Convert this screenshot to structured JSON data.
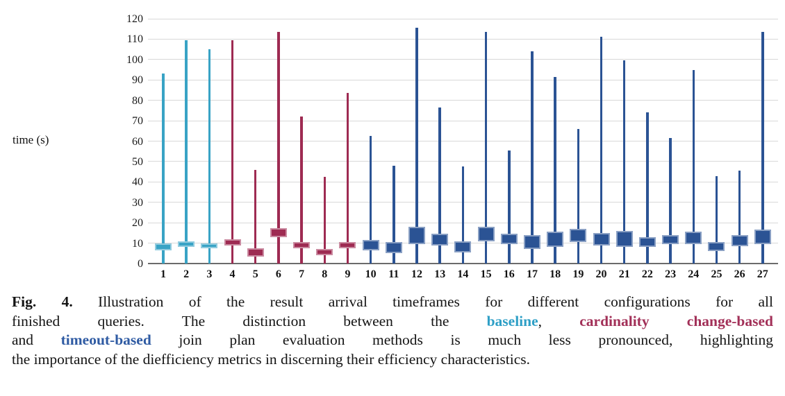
{
  "figure": {
    "ylabel": "time (s)"
  },
  "chart_data": {
    "type": "boxplot",
    "title": "",
    "xlabel": "",
    "ylabel": "time (s)",
    "ylim": [
      0,
      120
    ],
    "ytick_step": 10,
    "grid": "horizontal",
    "categories": [
      "1",
      "2",
      "3",
      "4",
      "5",
      "6",
      "7",
      "8",
      "9",
      "10",
      "11",
      "12",
      "13",
      "14",
      "15",
      "16",
      "17",
      "18",
      "19",
      "20",
      "21",
      "22",
      "23",
      "24",
      "25",
      "26",
      "27"
    ],
    "groups": [
      {
        "name": "baseline",
        "color": "#39A3C5",
        "categories": "1-3"
      },
      {
        "name": "cardinality",
        "color": "#9E2B52",
        "categories": "4-9"
      },
      {
        "name": "timeout",
        "color": "#2B5394",
        "categories": "10-27"
      }
    ],
    "series": [
      {
        "category": "1",
        "group": "baseline",
        "whisker_low": 0,
        "whisker_high": 93,
        "box_low": 6.5,
        "box_high": 10
      },
      {
        "category": "2",
        "group": "baseline",
        "whisker_low": 0,
        "whisker_high": 109.5,
        "box_low": 8,
        "box_high": 11
      },
      {
        "category": "3",
        "group": "baseline",
        "whisker_low": 0,
        "whisker_high": 105,
        "box_low": 7.5,
        "box_high": 10
      },
      {
        "category": "4",
        "group": "cardinality",
        "whisker_low": 0,
        "whisker_high": 109.5,
        "box_low": 9,
        "box_high": 12
      },
      {
        "category": "5",
        "group": "cardinality",
        "whisker_low": 0,
        "whisker_high": 46,
        "box_low": 3.5,
        "box_high": 7.5
      },
      {
        "category": "6",
        "group": "cardinality",
        "whisker_low": 0,
        "whisker_high": 113.5,
        "box_low": 13,
        "box_high": 17.5
      },
      {
        "category": "7",
        "group": "cardinality",
        "whisker_low": 0,
        "whisker_high": 72,
        "box_low": 7.5,
        "box_high": 10.5
      },
      {
        "category": "8",
        "group": "cardinality",
        "whisker_low": 0,
        "whisker_high": 42.5,
        "box_low": 4,
        "box_high": 7
      },
      {
        "category": "9",
        "group": "cardinality",
        "whisker_low": 0,
        "whisker_high": 83.5,
        "box_low": 7.5,
        "box_high": 10.5
      },
      {
        "category": "10",
        "group": "timeout",
        "whisker_low": 0,
        "whisker_high": 62.5,
        "box_low": 6.5,
        "box_high": 11.5
      },
      {
        "category": "11",
        "group": "timeout",
        "whisker_low": 0,
        "whisker_high": 48,
        "box_low": 5,
        "box_high": 10.5
      },
      {
        "category": "12",
        "group": "timeout",
        "whisker_low": 0,
        "whisker_high": 115.5,
        "box_low": 9.5,
        "box_high": 18
      },
      {
        "category": "13",
        "group": "timeout",
        "whisker_low": 0,
        "whisker_high": 76.5,
        "box_low": 9,
        "box_high": 14.5
      },
      {
        "category": "14",
        "group": "timeout",
        "whisker_low": 0,
        "whisker_high": 47.5,
        "box_low": 5.5,
        "box_high": 11
      },
      {
        "category": "15",
        "group": "timeout",
        "whisker_low": 0,
        "whisker_high": 113.5,
        "box_low": 11,
        "box_high": 18
      },
      {
        "category": "16",
        "group": "timeout",
        "whisker_low": 0,
        "whisker_high": 55.5,
        "box_low": 9.5,
        "box_high": 14.5
      },
      {
        "category": "17",
        "group": "timeout",
        "whisker_low": 0,
        "whisker_high": 104,
        "box_low": 7,
        "box_high": 14
      },
      {
        "category": "18",
        "group": "timeout",
        "whisker_low": 0,
        "whisker_high": 91.5,
        "box_low": 8,
        "box_high": 15.5
      },
      {
        "category": "19",
        "group": "timeout",
        "whisker_low": 0,
        "whisker_high": 66,
        "box_low": 10.5,
        "box_high": 17
      },
      {
        "category": "20",
        "group": "timeout",
        "whisker_low": 0,
        "whisker_high": 111,
        "box_low": 9,
        "box_high": 15
      },
      {
        "category": "21",
        "group": "timeout",
        "whisker_low": 0,
        "whisker_high": 99.5,
        "box_low": 8,
        "box_high": 16
      },
      {
        "category": "22",
        "group": "timeout",
        "whisker_low": 0,
        "whisker_high": 74,
        "box_low": 8,
        "box_high": 13
      },
      {
        "category": "23",
        "group": "timeout",
        "whisker_low": 0,
        "whisker_high": 61.5,
        "box_low": 9.5,
        "box_high": 14
      },
      {
        "category": "24",
        "group": "timeout",
        "whisker_low": 0,
        "whisker_high": 95,
        "box_low": 9.5,
        "box_high": 15.5
      },
      {
        "category": "25",
        "group": "timeout",
        "whisker_low": 0,
        "whisker_high": 43,
        "box_low": 6,
        "box_high": 10.5
      },
      {
        "category": "26",
        "group": "timeout",
        "whisker_low": 0,
        "whisker_high": 45.5,
        "box_low": 8.5,
        "box_high": 14
      },
      {
        "category": "27",
        "group": "timeout",
        "whisker_low": 0,
        "whisker_high": 113.5,
        "box_low": 9.5,
        "box_high": 16.5
      }
    ]
  },
  "caption": {
    "colors": {
      "baseline": "#2E9FC6",
      "cardinality": "#A23058",
      "timeout": "#2F5BA3"
    },
    "lines": [
      [
        {
          "text": "Fig. 4.",
          "bold": true
        },
        {
          "text": " Illustration of the result arrival timeframes for different configurations for all"
        }
      ],
      [
        {
          "text": "finished queries. The distinction between the "
        },
        {
          "text": "baseline",
          "bold": true,
          "color_group": "baseline"
        },
        {
          "text": ", "
        },
        {
          "text": "cardinality change-based",
          "bold": true,
          "color_group": "cardinality"
        }
      ],
      [
        {
          "text": "and "
        },
        {
          "text": "timeout-based",
          "bold": true,
          "color_group": "timeout"
        },
        {
          "text": " join plan evaluation methods is much less pronounced, highlighting"
        }
      ],
      [
        {
          "text": "the importance of the diefficiency metrics in discerning their efficiency characteristics."
        }
      ]
    ]
  }
}
